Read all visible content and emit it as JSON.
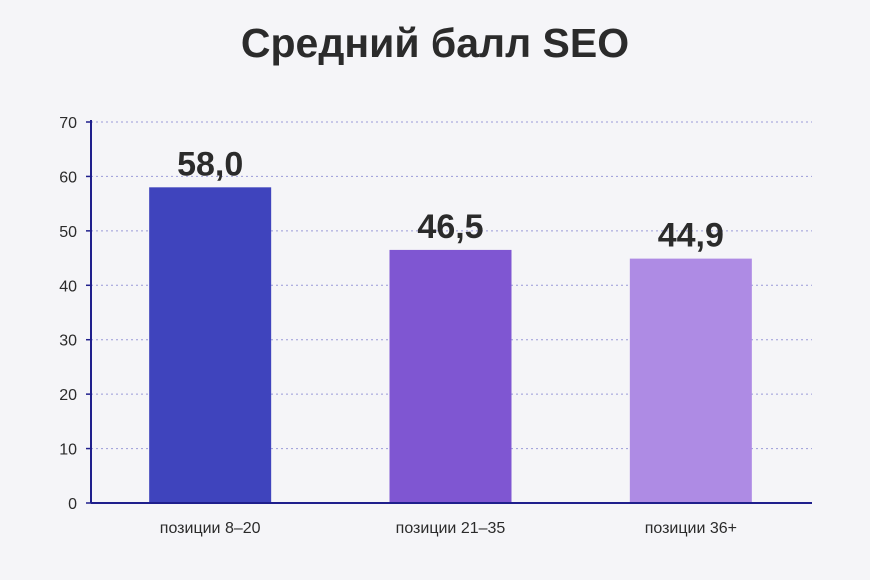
{
  "chart_data": {
    "type": "bar",
    "title": "Средний балл SEO",
    "xlabel": "",
    "ylabel": "",
    "categories": [
      "позиции 8–20",
      "позиции 21–35",
      "позиции 36+"
    ],
    "values": [
      58.0,
      46.5,
      44.9
    ],
    "data_labels": [
      "58,0",
      "46,5",
      "44,9"
    ],
    "bar_colors": [
      "#3f44bd",
      "#7f56d2",
      "#ae8be4"
    ],
    "ylim": [
      0,
      70
    ],
    "yticks": [
      0,
      10,
      20,
      30,
      40,
      50,
      60,
      70
    ],
    "grid": true,
    "grid_style": "dotted",
    "axis_color": "#1f1f8c",
    "grid_color": "#9a9ad8",
    "background": "#f5f5f8"
  }
}
